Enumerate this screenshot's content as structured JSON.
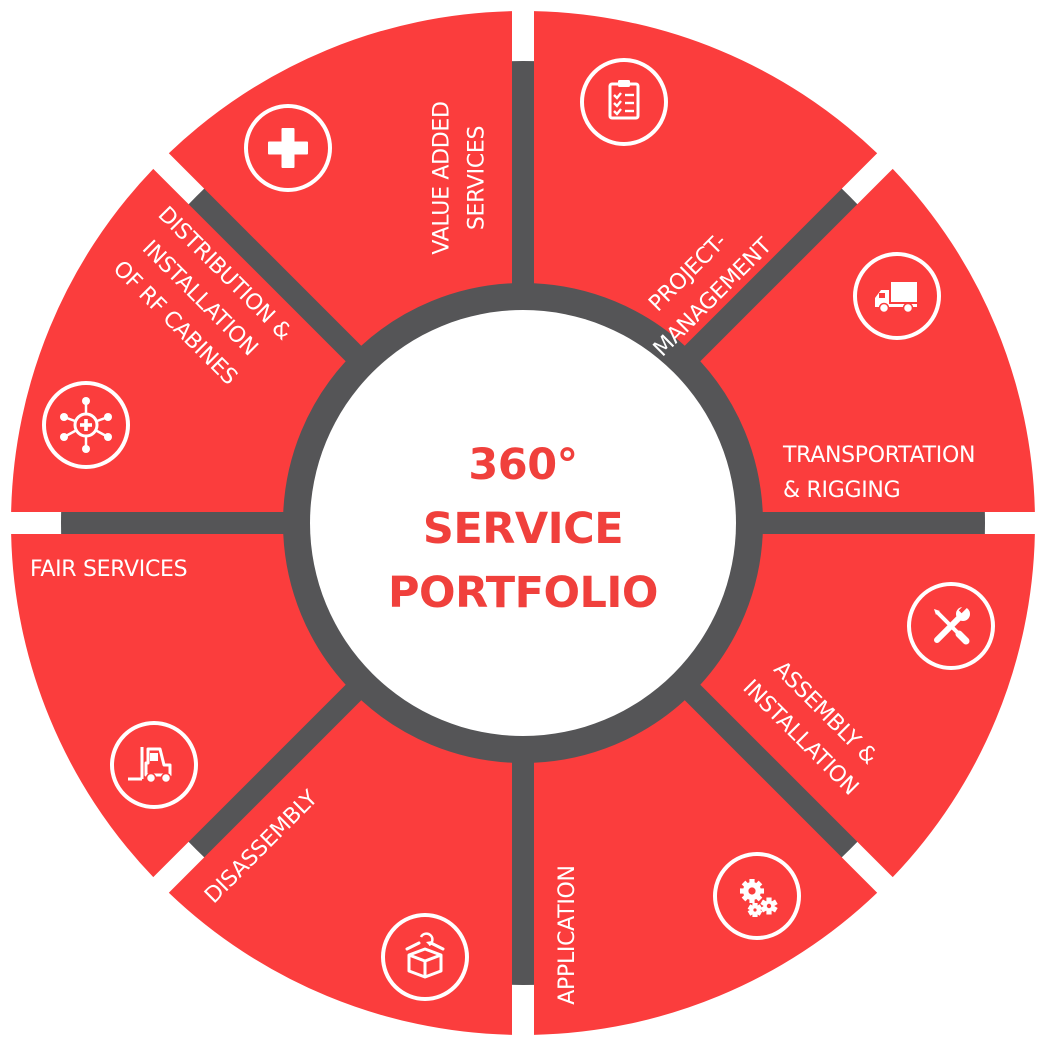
{
  "center": {
    "line1": "360°",
    "line2": "SERVICE",
    "line3": "PORTFOLIO"
  },
  "segments": [
    {
      "id": "project-management",
      "lines": [
        "PROJECT-",
        "MANAGEMENT"
      ],
      "icon": "clipboard-checklist-icon"
    },
    {
      "id": "transportation-rigging",
      "lines": [
        "TRANSPORTATION",
        "& RIGGING"
      ],
      "icon": "truck-icon"
    },
    {
      "id": "assembly-installation",
      "lines": [
        "ASSEMBLY &",
        "INSTALLATION"
      ],
      "icon": "wrench-screwdriver-icon"
    },
    {
      "id": "application",
      "lines": [
        "APPLICATION"
      ],
      "icon": "gears-icon"
    },
    {
      "id": "disassembly",
      "lines": [
        "DISASSEMBLY"
      ],
      "icon": "box-icon"
    },
    {
      "id": "fair-services",
      "lines": [
        "FAIR SERVICES"
      ],
      "icon": "forklift-icon"
    },
    {
      "id": "distribution-rf-cabines",
      "lines": [
        "DISTRIBUTION &",
        "INSTALLATION",
        "OF RF CABINES"
      ],
      "icon": "network-hub-icon"
    },
    {
      "id": "value-added-services",
      "lines": [
        "VALUE ADDED",
        "SERVICES"
      ],
      "icon": "plus-icon"
    }
  ],
  "colors": {
    "segment": "#fb3d3d",
    "hub": "#555557",
    "center_text": "#f0403c",
    "background": "#ffffff"
  }
}
